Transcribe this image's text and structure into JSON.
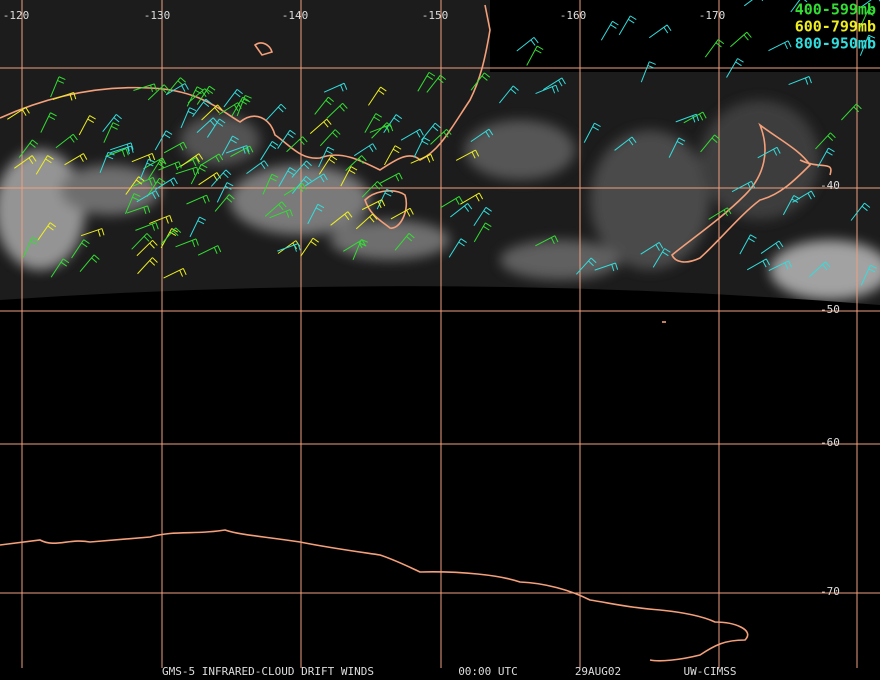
{
  "map": {
    "longitude_labels": [
      "-120",
      "-130",
      "-140",
      "-150",
      "-160",
      "-170"
    ],
    "latitude_labels": [
      "-40",
      "-50",
      "-60",
      "-70"
    ],
    "legend": [
      {
        "label": "400-599mb",
        "color": "#33dd33"
      },
      {
        "label": "600-799mb",
        "color": "#eeee22"
      },
      {
        "label": "800-950mb",
        "color": "#33dddd"
      }
    ],
    "grid_color": "#f0a080",
    "footer": [
      "GMS-5 INFRARED-CLOUD DRIFT WINDS",
      "00:00 UTC",
      "29AUG02",
      "UW-CIMSS"
    ]
  }
}
